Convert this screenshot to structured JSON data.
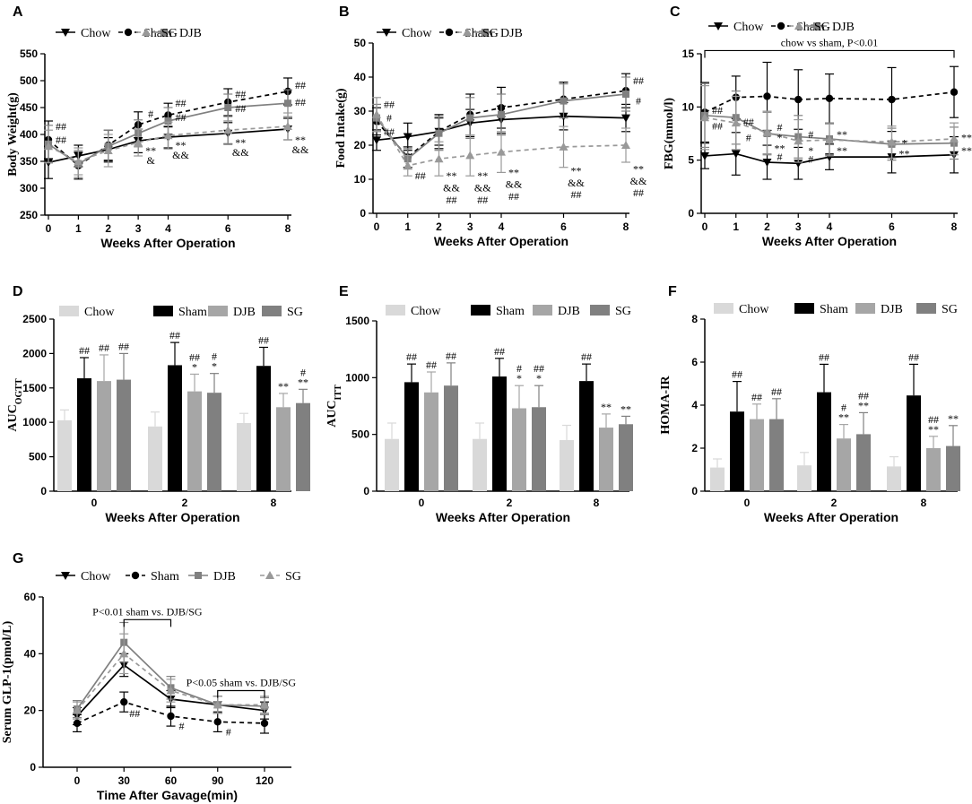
{
  "chart_data": [
    {
      "panel": "A",
      "type": "line",
      "xlabel": "Weeks After Operation",
      "ylabel": "Body Weight(g)",
      "x": [
        0,
        1,
        2,
        3,
        4,
        6,
        8
      ],
      "xticks": [
        "0",
        "1",
        "2",
        "3",
        "4",
        "6",
        "8"
      ],
      "ylim": [
        250,
        550
      ],
      "yticks": [
        250,
        300,
        350,
        400,
        450,
        500,
        550
      ],
      "series": [
        {
          "name": "Chow",
          "values": [
            348,
            360,
            372,
            388,
            395,
            402,
            410
          ],
          "err": [
            30,
            20,
            22,
            22,
            20,
            20,
            20
          ]
        },
        {
          "name": "Sham",
          "values": [
            390,
            342,
            380,
            418,
            436,
            460,
            480
          ],
          "err": [
            35,
            25,
            28,
            24,
            22,
            25,
            25
          ]
        },
        {
          "name": "DJB",
          "values": [
            382,
            345,
            378,
            402,
            425,
            450,
            458
          ],
          "err": [
            35,
            25,
            30,
            25,
            25,
            25,
            25
          ]
        },
        {
          "name": "SG",
          "values": [
            378,
            350,
            370,
            385,
            398,
            408,
            415
          ],
          "err": [
            30,
            25,
            30,
            25,
            25,
            25,
            25
          ]
        }
      ],
      "annotations": [
        {
          "x": 0,
          "y": 415,
          "text": "##"
        },
        {
          "x": 0,
          "y": 390,
          "text": "##"
        },
        {
          "x": 3,
          "y": 438,
          "text": "#"
        },
        {
          "x": 3,
          "y": 370,
          "text": "**"
        },
        {
          "x": 3,
          "y": 352,
          "text": "&"
        },
        {
          "x": 4,
          "y": 458,
          "text": "##"
        },
        {
          "x": 4,
          "y": 432,
          "text": "##"
        },
        {
          "x": 4,
          "y": 380,
          "text": "**"
        },
        {
          "x": 4,
          "y": 362,
          "text": "&&"
        },
        {
          "x": 6,
          "y": 475,
          "text": "##"
        },
        {
          "x": 6,
          "y": 448,
          "text": "##"
        },
        {
          "x": 6,
          "y": 385,
          "text": "**"
        },
        {
          "x": 6,
          "y": 367,
          "text": "&&"
        },
        {
          "x": 8,
          "y": 492,
          "text": "##"
        },
        {
          "x": 8,
          "y": 460,
          "text": "##"
        },
        {
          "x": 8,
          "y": 390,
          "text": "**"
        },
        {
          "x": 8,
          "y": 372,
          "text": "&&"
        }
      ]
    },
    {
      "panel": "B",
      "type": "line",
      "xlabel": "Weeks After Operation",
      "ylabel": "Food Intake(g)",
      "x": [
        0,
        1,
        2,
        3,
        4,
        6,
        8
      ],
      "xticks": [
        "0",
        "1",
        "2",
        "3",
        "4",
        "6",
        "8"
      ],
      "ylim": [
        0,
        50
      ],
      "yticks": [
        0,
        10,
        20,
        30,
        40,
        50
      ],
      "series": [
        {
          "name": "Chow",
          "values": [
            21.5,
            22.5,
            24,
            26.5,
            27.5,
            28.5,
            28
          ],
          "err": [
            3,
            4,
            4,
            4,
            4,
            4,
            4
          ]
        },
        {
          "name": "Sham",
          "values": [
            27,
            16.5,
            24,
            29,
            31,
            33.5,
            36
          ],
          "err": [
            4,
            3,
            5,
            6,
            6,
            5,
            5
          ]
        },
        {
          "name": "DJB",
          "values": [
            28,
            16,
            23.5,
            28,
            29,
            33,
            35
          ],
          "err": [
            4,
            3,
            5,
            6,
            6,
            5,
            5
          ]
        },
        {
          "name": "SG",
          "values": [
            29,
            14,
            16,
            17,
            18,
            19.5,
            20
          ],
          "err": [
            5,
            3,
            5,
            6,
            6,
            6,
            5
          ]
        }
      ],
      "annotations": [
        {
          "x": 0,
          "y": 32,
          "text": "##"
        },
        {
          "x": 0,
          "y": 28,
          "text": "#"
        },
        {
          "x": 0,
          "y": 24,
          "text": "##"
        },
        {
          "x": 1,
          "y": 11,
          "text": "##"
        },
        {
          "x": 2,
          "y": 11,
          "text": "**"
        },
        {
          "x": 2,
          "y": 7.5,
          "text": "&&"
        },
        {
          "x": 2,
          "y": 4,
          "text": "##"
        },
        {
          "x": 3,
          "y": 11,
          "text": "**"
        },
        {
          "x": 3,
          "y": 7.5,
          "text": "&&"
        },
        {
          "x": 3,
          "y": 4,
          "text": "##"
        },
        {
          "x": 4,
          "y": 12,
          "text": "**"
        },
        {
          "x": 4,
          "y": 8.5,
          "text": "&&"
        },
        {
          "x": 4,
          "y": 5,
          "text": "##"
        },
        {
          "x": 6,
          "y": 12.5,
          "text": "**"
        },
        {
          "x": 6,
          "y": 9,
          "text": "&&"
        },
        {
          "x": 6,
          "y": 5.5,
          "text": "##"
        },
        {
          "x": 8,
          "y": 13,
          "text": "**"
        },
        {
          "x": 8,
          "y": 9.5,
          "text": "&&"
        },
        {
          "x": 8,
          "y": 6,
          "text": "##"
        },
        {
          "x": 8,
          "y": 39,
          "text": "##"
        },
        {
          "x": 8,
          "y": 33,
          "text": "#"
        }
      ]
    },
    {
      "panel": "C",
      "type": "line",
      "xlabel": "Weeks After Operation",
      "ylabel": "FBG(mmol/l)",
      "x": [
        0,
        1,
        2,
        3,
        4,
        6,
        8
      ],
      "xticks": [
        "0",
        "1",
        "2",
        "3",
        "4",
        "6",
        "8"
      ],
      "ylim": [
        0,
        15
      ],
      "yticks": [
        0,
        5,
        10,
        15
      ],
      "series": [
        {
          "name": "Chow",
          "values": [
            5.4,
            5.6,
            4.8,
            4.7,
            5.3,
            5.3,
            5.5
          ],
          "err": [
            1.2,
            2,
            1.6,
            1.5,
            1.2,
            1.5,
            1.7
          ]
        },
        {
          "name": "Sham",
          "values": [
            9.5,
            10.9,
            11,
            10.7,
            10.8,
            10.7,
            11.4
          ],
          "err": [
            2.8,
            2,
            3.2,
            2.8,
            2.3,
            3,
            2.4
          ]
        },
        {
          "name": "DJB",
          "values": [
            9.2,
            9,
            7.5,
            7.2,
            7,
            6.5,
            6.6
          ],
          "err": [
            3,
            2.5,
            2,
            2,
            1.5,
            1.5,
            1.5
          ]
        },
        {
          "name": "SG",
          "values": [
            9,
            8.5,
            7.6,
            6.8,
            6.9,
            6.7,
            7
          ],
          "err": [
            3,
            2.5,
            2,
            2,
            1.5,
            1.5,
            1.5
          ]
        }
      ],
      "bracket": {
        "from": 0,
        "to": 8,
        "y": 15.3,
        "text": "chow vs sham, P<0.01"
      },
      "annotations": [
        {
          "x": 0,
          "y": 9.7,
          "text": "##"
        },
        {
          "x": 0,
          "y": 8.2,
          "text": "##"
        },
        {
          "x": 1,
          "y": 8.6,
          "text": "##"
        },
        {
          "x": 1,
          "y": 7.1,
          "text": "#"
        },
        {
          "x": 2,
          "y": 8.1,
          "text": "#"
        },
        {
          "x": 2,
          "y": 7.1,
          "text": "*"
        },
        {
          "x": 2,
          "y": 6.1,
          "text": "**"
        },
        {
          "x": 2,
          "y": 5.3,
          "text": "#"
        },
        {
          "x": 3,
          "y": 7.4,
          "text": "#"
        },
        {
          "x": 3,
          "y": 5.9,
          "text": "*"
        },
        {
          "x": 3,
          "y": 5.1,
          "text": "#"
        },
        {
          "x": 4,
          "y": 7.4,
          "text": "**"
        },
        {
          "x": 4,
          "y": 5.9,
          "text": "**"
        },
        {
          "x": 6,
          "y": 6.6,
          "text": "*"
        },
        {
          "x": 6,
          "y": 5.6,
          "text": "**"
        },
        {
          "x": 8,
          "y": 7.1,
          "text": "**"
        },
        {
          "x": 8,
          "y": 5.9,
          "text": "**"
        }
      ]
    },
    {
      "panel": "D",
      "type": "bar",
      "xlabel": "Weeks After Operation",
      "ylabel": "AUC",
      "ylabel_sub": "OGTT",
      "categories": [
        "0",
        "2",
        "8"
      ],
      "ylim": [
        0,
        2500
      ],
      "yticks": [
        0,
        500,
        1000,
        1500,
        2000,
        2500
      ],
      "series": [
        {
          "name": "Chow",
          "values": [
            1030,
            940,
            990
          ],
          "err": [
            150,
            210,
            140
          ]
        },
        {
          "name": "Sham",
          "values": [
            1640,
            1830,
            1820
          ],
          "err": [
            300,
            330,
            270
          ]
        },
        {
          "name": "DJB",
          "values": [
            1600,
            1450,
            1220
          ],
          "err": [
            380,
            250,
            200
          ]
        },
        {
          "name": "SG",
          "values": [
            1620,
            1430,
            1280
          ],
          "err": [
            380,
            280,
            200
          ]
        }
      ],
      "annotations": [
        {
          "g": 0,
          "s": 1,
          "texts": [
            "##"
          ]
        },
        {
          "g": 0,
          "s": 2,
          "texts": [
            "##"
          ]
        },
        {
          "g": 0,
          "s": 3,
          "texts": [
            "##"
          ]
        },
        {
          "g": 1,
          "s": 1,
          "texts": [
            "##"
          ]
        },
        {
          "g": 1,
          "s": 2,
          "texts": [
            "##",
            "*"
          ]
        },
        {
          "g": 1,
          "s": 3,
          "texts": [
            "#",
            "*"
          ]
        },
        {
          "g": 2,
          "s": 1,
          "texts": [
            "##"
          ]
        },
        {
          "g": 2,
          "s": 2,
          "texts": [
            "**"
          ]
        },
        {
          "g": 2,
          "s": 3,
          "texts": [
            "#",
            "**"
          ]
        }
      ]
    },
    {
      "panel": "E",
      "type": "bar",
      "xlabel": "Weeks After Operation",
      "ylabel": "AUC",
      "ylabel_sub": "ITT",
      "categories": [
        "0",
        "2",
        "8"
      ],
      "ylim": [
        0,
        1500
      ],
      "yticks": [
        0,
        500,
        1000,
        1500
      ],
      "series": [
        {
          "name": "Chow",
          "values": [
            460,
            460,
            450
          ],
          "err": [
            140,
            140,
            130
          ]
        },
        {
          "name": "Sham",
          "values": [
            960,
            1010,
            970
          ],
          "err": [
            160,
            160,
            150
          ]
        },
        {
          "name": "DJB",
          "values": [
            870,
            730,
            560
          ],
          "err": [
            180,
            200,
            120
          ]
        },
        {
          "name": "SG",
          "values": [
            930,
            740,
            590
          ],
          "err": [
            200,
            190,
            70
          ]
        }
      ],
      "annotations": [
        {
          "g": 0,
          "s": 1,
          "texts": [
            "##"
          ]
        },
        {
          "g": 0,
          "s": 2,
          "texts": [
            "##"
          ]
        },
        {
          "g": 0,
          "s": 3,
          "texts": [
            "##"
          ]
        },
        {
          "g": 1,
          "s": 1,
          "texts": [
            "##"
          ]
        },
        {
          "g": 1,
          "s": 2,
          "texts": [
            "#",
            "*"
          ]
        },
        {
          "g": 1,
          "s": 3,
          "texts": [
            "##",
            "*"
          ]
        },
        {
          "g": 2,
          "s": 1,
          "texts": [
            "##"
          ]
        },
        {
          "g": 2,
          "s": 2,
          "texts": [
            "**"
          ]
        },
        {
          "g": 2,
          "s": 3,
          "texts": [
            "**"
          ]
        }
      ]
    },
    {
      "panel": "F",
      "type": "bar",
      "xlabel": "Weeks After Operation",
      "ylabel": "HOMA-IR",
      "categories": [
        "0",
        "2",
        "8"
      ],
      "ylim": [
        0,
        8
      ],
      "yticks": [
        0,
        2,
        4,
        6,
        8
      ],
      "series": [
        {
          "name": "Chow",
          "values": [
            1.1,
            1.2,
            1.15
          ],
          "err": [
            0.4,
            0.6,
            0.45
          ]
        },
        {
          "name": "Sham",
          "values": [
            3.7,
            4.6,
            4.45
          ],
          "err": [
            1.4,
            1.3,
            1.45
          ]
        },
        {
          "name": "DJB",
          "values": [
            3.35,
            2.45,
            2.0
          ],
          "err": [
            0.7,
            0.65,
            0.55
          ]
        },
        {
          "name": "SG",
          "values": [
            3.35,
            2.65,
            2.1
          ],
          "err": [
            0.95,
            1.0,
            0.95
          ]
        }
      ],
      "annotations": [
        {
          "g": 0,
          "s": 1,
          "texts": [
            "##"
          ]
        },
        {
          "g": 0,
          "s": 2,
          "texts": [
            "##"
          ]
        },
        {
          "g": 0,
          "s": 3,
          "texts": [
            "##"
          ]
        },
        {
          "g": 1,
          "s": 1,
          "texts": [
            "##"
          ]
        },
        {
          "g": 1,
          "s": 2,
          "texts": [
            "#",
            "**"
          ]
        },
        {
          "g": 1,
          "s": 3,
          "texts": [
            "##",
            "**"
          ]
        },
        {
          "g": 2,
          "s": 1,
          "texts": [
            "##"
          ]
        },
        {
          "g": 2,
          "s": 2,
          "texts": [
            "##",
            "**"
          ]
        },
        {
          "g": 2,
          "s": 3,
          "texts": [
            "**"
          ]
        }
      ]
    },
    {
      "panel": "G",
      "type": "line",
      "xlabel": "Time After Gavage(min)",
      "ylabel": "Serum GLP-1(pmol/L)",
      "x": [
        0,
        30,
        60,
        90,
        120
      ],
      "xticks": [
        "0",
        "30",
        "60",
        "90",
        "120"
      ],
      "ylim": [
        0,
        60
      ],
      "yticks": [
        0,
        20,
        40,
        60
      ],
      "series": [
        {
          "name": "Chow",
          "values": [
            18,
            36,
            24,
            22,
            20
          ],
          "err": [
            3,
            4,
            3,
            3,
            3
          ]
        },
        {
          "name": "Sham",
          "values": [
            15.5,
            23,
            18,
            16,
            15.5
          ],
          "err": [
            3,
            3.5,
            3.5,
            3.5,
            3.5
          ]
        },
        {
          "name": "DJB",
          "values": [
            20.5,
            44,
            28,
            22,
            21.5
          ],
          "err": [
            3,
            7,
            4,
            3,
            3
          ]
        },
        {
          "name": "SG",
          "values": [
            20,
            40,
            27,
            22,
            22
          ],
          "err": [
            3,
            7,
            4,
            3,
            3
          ]
        }
      ],
      "brackets": [
        {
          "from": 30,
          "to": 60,
          "y": 52,
          "text": "P<0.01 sham vs. DJB/SG"
        },
        {
          "from": 90,
          "to": 120,
          "y": 27,
          "text": "P<0.05 sham vs. DJB/SG"
        }
      ],
      "annotations": [
        {
          "x": 30,
          "y": 19,
          "text": "##"
        },
        {
          "x": 60,
          "y": 14.5,
          "text": "#"
        },
        {
          "x": 90,
          "y": 12.5,
          "text": "#"
        }
      ]
    }
  ],
  "legend_labels": [
    "Chow",
    "Sham",
    "DJB",
    "SG"
  ],
  "colors": {
    "Chow": "#000000",
    "Sham": "#000000",
    "DJB": "#808080",
    "SG": "#999999"
  },
  "bar_colors": {
    "Chow": "#d9d9d9",
    "Sham": "#000000",
    "DJB": "#a6a6a6",
    "SG": "#808080"
  }
}
